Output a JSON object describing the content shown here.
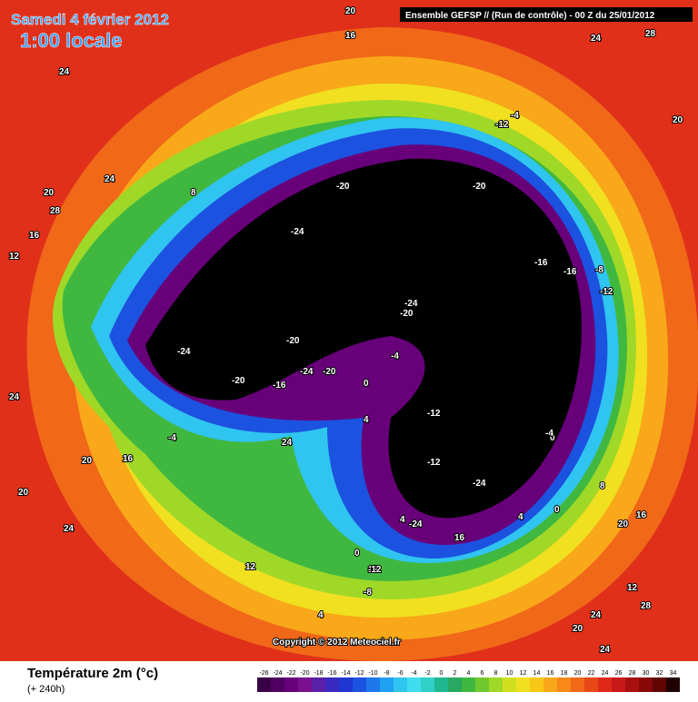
{
  "header": {
    "title": "Samedi 4 février 2012",
    "subtitle": "1:00 locale",
    "run": "Ensemble GEFSP // (Run de contrôle)  -  00 Z du 25/01/2012"
  },
  "map": {
    "copyright": "Copyright © 2012 Meteociel.fr",
    "contour_labels": [
      20,
      16,
      24,
      28,
      20,
      24,
      20,
      28,
      16,
      12,
      24,
      -20,
      -20,
      -24,
      -16,
      -16,
      -8,
      -12,
      -12,
      -24,
      -20,
      -24,
      -20,
      -20,
      -16,
      -24,
      -12,
      -4,
      -12,
      -4,
      0,
      4,
      4,
      8,
      0,
      -4,
      8,
      12,
      16,
      20,
      24,
      20,
      16,
      24,
      20,
      12,
      24,
      28,
      20,
      24,
      -12,
      -8,
      4,
      0,
      12,
      -4,
      4,
      0,
      24,
      16,
      -24,
      -24,
      -20
    ]
  },
  "legend": {
    "title": "Température 2m (°c)",
    "subtitle": "(+ 240h)",
    "ticks": [
      -26,
      -24,
      -22,
      -20,
      -18,
      -16,
      -14,
      -12,
      -10,
      -8,
      -6,
      -4,
      -2,
      0,
      2,
      4,
      6,
      8,
      10,
      12,
      14,
      16,
      18,
      20,
      22,
      24,
      26,
      28,
      30,
      32,
      34
    ],
    "colors": [
      "#3a0046",
      "#500060",
      "#68007a",
      "#7a1090",
      "#5a20a8",
      "#3a28c0",
      "#2036d0",
      "#1c52e0",
      "#1c78ec",
      "#20a0f0",
      "#30c4f0",
      "#40dcf0",
      "#30d0c8",
      "#20b890",
      "#28a860",
      "#40b840",
      "#70c830",
      "#a0d828",
      "#d0e020",
      "#f0e020",
      "#f8c818",
      "#f8a818",
      "#f88818",
      "#f06818",
      "#e84818",
      "#e02818",
      "#c81818",
      "#a81010",
      "#880808",
      "#600404",
      "#200000"
    ]
  }
}
